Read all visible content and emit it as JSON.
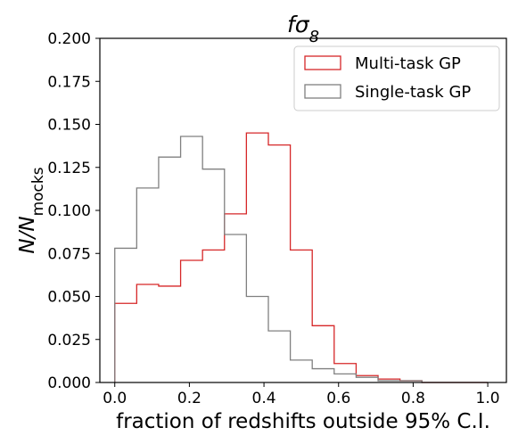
{
  "chart_data": {
    "type": "histogram",
    "title": "fσ8",
    "title_parts": {
      "main": "fσ",
      "sub": "8"
    },
    "xlabel": "fraction of redshifts outside 95% C.I.",
    "ylabel": "N/N_mocks",
    "ylabel_parts": {
      "main": "N/N",
      "sub": "mocks"
    },
    "xlim": [
      -0.04,
      1.05
    ],
    "ylim": [
      0,
      0.2
    ],
    "xticks": [
      0.0,
      0.2,
      0.4,
      0.6,
      0.8,
      1.0
    ],
    "xtick_labels": [
      "0.0",
      "0.2",
      "0.4",
      "0.6",
      "0.8",
      "1.0"
    ],
    "yticks": [
      0.0,
      0.025,
      0.05,
      0.075,
      0.1,
      0.125,
      0.15,
      0.175,
      0.2
    ],
    "ytick_labels": [
      "0.000",
      "0.025",
      "0.050",
      "0.075",
      "0.100",
      "0.125",
      "0.150",
      "0.175",
      "0.200"
    ],
    "bin_edges": [
      0.0,
      0.0588,
      0.1176,
      0.1765,
      0.2353,
      0.2941,
      0.3529,
      0.4118,
      0.4706,
      0.5294,
      0.5882,
      0.6471,
      0.7059,
      0.7647,
      0.8235,
      0.8824,
      0.9412,
      1.0
    ],
    "grid": false,
    "legend_position": "top-right",
    "series": [
      {
        "name": "Multi-task GP",
        "color": "#d62728",
        "values": [
          0.046,
          0.057,
          0.056,
          0.071,
          0.077,
          0.098,
          0.145,
          0.138,
          0.077,
          0.033,
          0.011,
          0.004,
          0.002,
          0.001,
          0.0,
          0.0,
          0.0
        ]
      },
      {
        "name": "Single-task GP",
        "color": "#808080",
        "values": [
          0.078,
          0.113,
          0.131,
          0.143,
          0.124,
          0.086,
          0.05,
          0.03,
          0.013,
          0.008,
          0.005,
          0.003,
          0.001,
          0.001,
          0.0,
          0.0,
          0.0
        ]
      }
    ]
  }
}
